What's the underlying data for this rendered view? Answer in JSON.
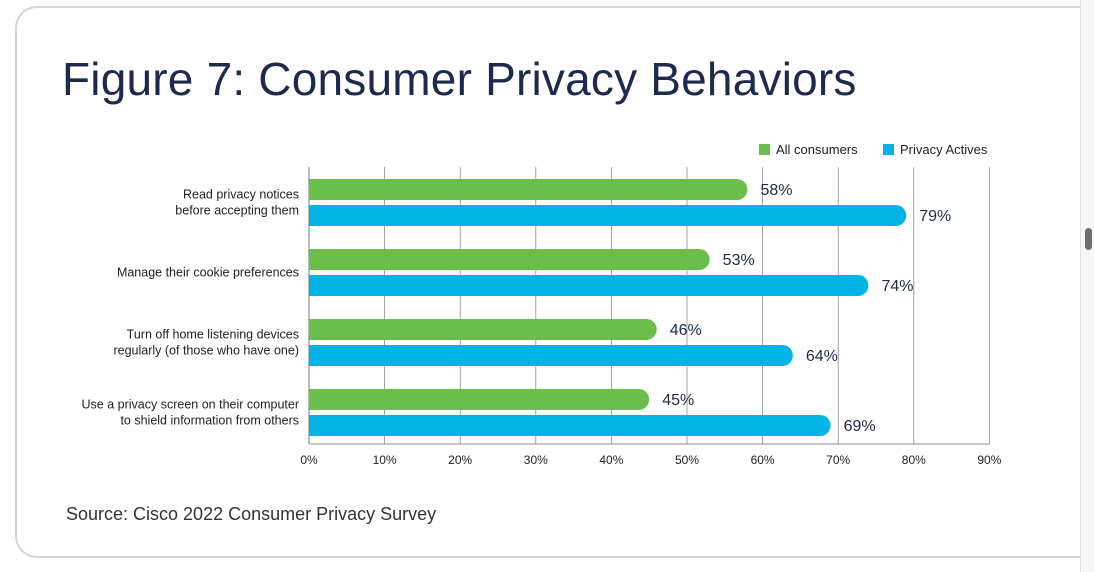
{
  "title": "Figure 7: Consumer Privacy Behaviors",
  "source": "Source: Cisco 2022 Consumer Privacy Survey",
  "colors": {
    "series1": "#6abf4b",
    "series2": "#00b5e6",
    "grid": "#8c8c8c",
    "title": "#1c2a4d"
  },
  "chart_data": {
    "type": "bar",
    "orientation": "horizontal",
    "title": "Figure 7: Consumer Privacy Behaviors",
    "categories": [
      [
        "Read privacy notices",
        "before accepting them"
      ],
      [
        "Manage their cookie preferences"
      ],
      [
        "Turn off home listening devices",
        "regularly (of those who have one)"
      ],
      [
        "Use a privacy screen on their computer",
        "to shield information from others"
      ]
    ],
    "series": [
      {
        "name": "All consumers",
        "values": [
          58,
          53,
          46,
          45
        ],
        "labels": [
          "58%",
          "53%",
          "46%",
          "45%"
        ]
      },
      {
        "name": "Privacy Actives",
        "values": [
          79,
          74,
          64,
          69
        ],
        "labels": [
          "79%",
          "74%",
          "64%",
          "69%"
        ]
      }
    ],
    "xlim": [
      0,
      90
    ],
    "xticks": [
      "0%",
      "10%",
      "20%",
      "30%",
      "40%",
      "50%",
      "60%",
      "70%",
      "80%",
      "90%"
    ],
    "grid": true,
    "legend_position": "top-right"
  }
}
